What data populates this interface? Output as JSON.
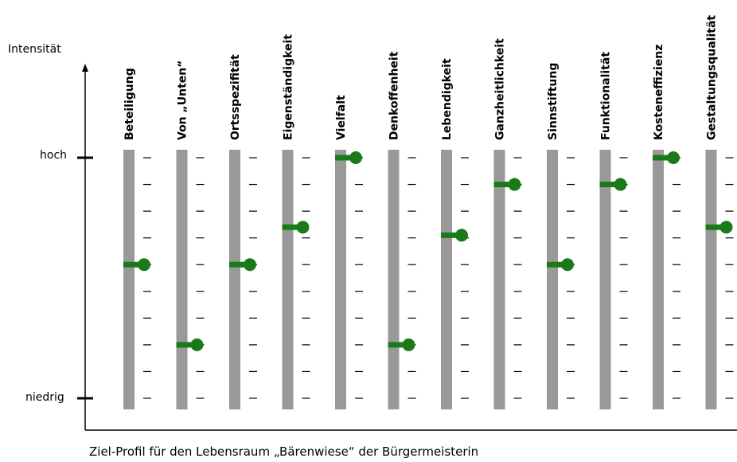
{
  "chart_data": {
    "type": "scatter",
    "ylabel": "Intensität",
    "y_tick_labels": {
      "high": "hoch",
      "low": "niedrig"
    },
    "ylim": [
      0,
      9
    ],
    "levels": 10,
    "grid": false,
    "categories": [
      "Beteiligung",
      "Von „Unten“",
      "Ortsspezifität",
      "Eigenständigkeit",
      "Vielfalt",
      "Denkoffenheit",
      "Lebendigkeit",
      "Ganzheitlichkeit",
      "Sinnstiftung",
      "Funktionalität",
      "Kosteneffizienz",
      "Gestaltungsqualität"
    ],
    "values": [
      5,
      2,
      5,
      6.4,
      9,
      2,
      6.1,
      8,
      5,
      8,
      9,
      6.4
    ],
    "colors": {
      "bar": "#999999",
      "marker": "#1a7a1a",
      "axis": "#000000"
    }
  },
  "caption": "Ziel-Profil für den Lebensraum „Bärenwiese“ der Bürgermeisterin"
}
